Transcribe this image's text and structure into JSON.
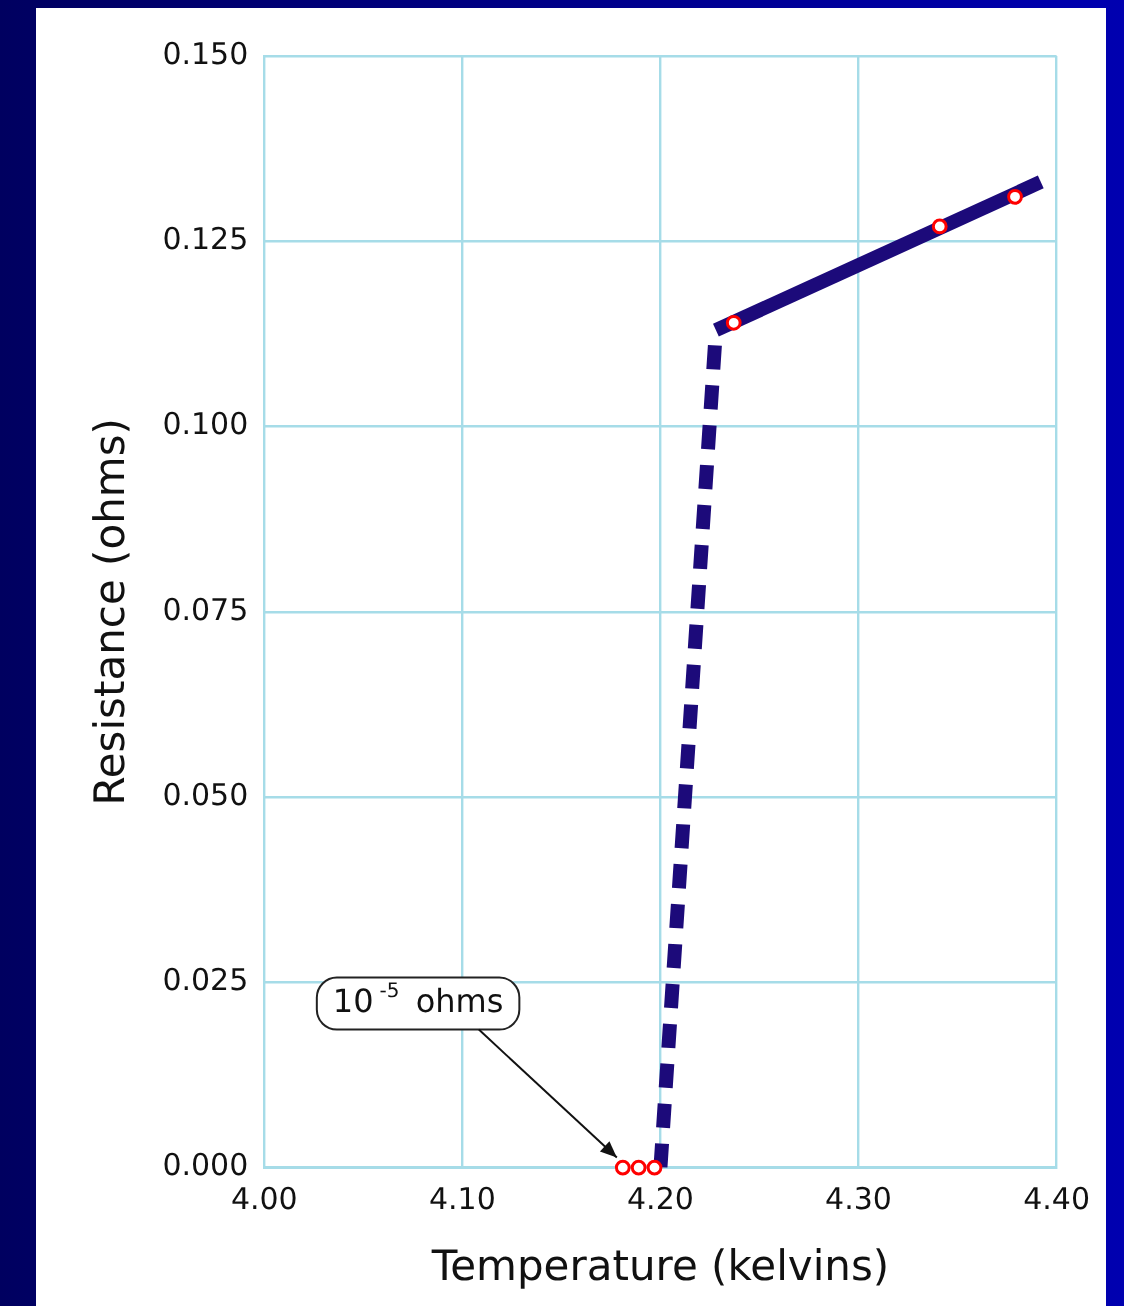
{
  "chart_data": {
    "type": "line",
    "xlabel": "Temperature (kelvins)",
    "ylabel": "Resistance (ohms)",
    "xlim": [
      4.0,
      4.4
    ],
    "ylim": [
      0,
      0.15
    ],
    "xticks": [
      {
        "value": 4.0,
        "label": "4.00"
      },
      {
        "value": 4.1,
        "label": "4.10"
      },
      {
        "value": 4.2,
        "label": "4.20"
      },
      {
        "value": 4.3,
        "label": "4.30"
      },
      {
        "value": 4.4,
        "label": "4.40"
      }
    ],
    "yticks": [
      {
        "value": 0,
        "label": "0.000"
      },
      {
        "value": 0.025,
        "label": "0.025"
      },
      {
        "value": 0.05,
        "label": "0.050"
      },
      {
        "value": 0.075,
        "label": "0.075"
      },
      {
        "value": 0.1,
        "label": "0.100"
      },
      {
        "value": 0.125,
        "label": "0.125"
      },
      {
        "value": 0.15,
        "label": "0.150"
      }
    ],
    "grid": true,
    "series": [
      {
        "color": "#1c0a7a",
        "line_style": "dashed",
        "marker": "none",
        "x": [
          4.2,
          4.228
        ],
        "values": [
          0,
          0.113
        ]
      },
      {
        "color": "#1c0a7a",
        "line_style": "solid",
        "marker": "none",
        "x": [
          4.228,
          4.392
        ],
        "values": [
          0.113,
          0.133
        ]
      },
      {
        "type": "scatter",
        "color": "#ff0000",
        "marker": "circle",
        "x": [
          4.181,
          4.189,
          4.197,
          4.237,
          4.341,
          4.379
        ],
        "values": [
          0,
          0,
          0,
          0.114,
          0.127,
          0.131
        ]
      }
    ],
    "annotations": [
      {
        "text": "10$^{-5}$ ohms",
        "x": 4.18,
        "y": 0
      }
    ]
  }
}
